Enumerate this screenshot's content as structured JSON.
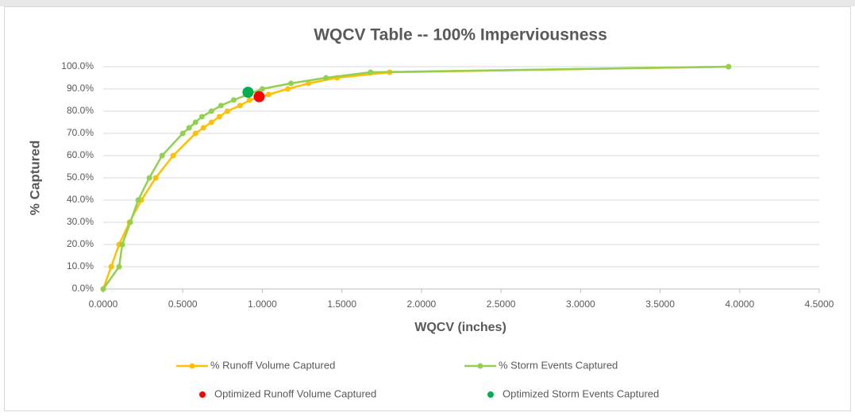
{
  "chart_data": {
    "type": "scatter",
    "title": "WQCV Table -- 100% Imperviousness",
    "x_label": "WQCV (inches)",
    "y_label": "% Captured",
    "xlim": [
      0,
      4.5
    ],
    "ylim": [
      0,
      100
    ],
    "xticks": [
      {
        "value": 0,
        "label": "0.0000"
      },
      {
        "value": 0.5,
        "label": "0.5000"
      },
      {
        "value": 1,
        "label": "1.0000"
      },
      {
        "value": 1.5,
        "label": "1.5000"
      },
      {
        "value": 2,
        "label": "2.0000"
      },
      {
        "value": 2.5,
        "label": "2.5000"
      },
      {
        "value": 3,
        "label": "3.0000"
      },
      {
        "value": 3.5,
        "label": "3.5000"
      },
      {
        "value": 4,
        "label": "4.0000"
      },
      {
        "value": 4.5,
        "label": "4.5000"
      }
    ],
    "yticks": [
      {
        "value": 0,
        "label": "0.0%"
      },
      {
        "value": 10,
        "label": "10.0%"
      },
      {
        "value": 20,
        "label": "20.0%"
      },
      {
        "value": 30,
        "label": "30.0%"
      },
      {
        "value": 40,
        "label": "40.0%"
      },
      {
        "value": 50,
        "label": "50.0%"
      },
      {
        "value": 60,
        "label": "60.0%"
      },
      {
        "value": 70,
        "label": "70.0%"
      },
      {
        "value": 80,
        "label": "80.0%"
      },
      {
        "value": 90,
        "label": "90.0%"
      },
      {
        "value": 100,
        "label": "100.0%"
      }
    ],
    "grid": true,
    "legend": "bottom",
    "series": [
      {
        "name": "% Runoff Volume Captured",
        "color": "#FFC000",
        "mode": "line",
        "x": [
          0,
          0.05,
          0.1,
          0.165,
          0.24,
          0.33,
          0.44,
          0.58,
          0.63,
          0.68,
          0.73,
          0.78,
          0.86,
          0.92,
          1.04,
          1.16,
          1.29,
          1.47,
          1.8,
          3.93
        ],
        "y": [
          0,
          10,
          20,
          30,
          40,
          50,
          60,
          70,
          72.5,
          75,
          77.5,
          80,
          82.5,
          85,
          87.5,
          90,
          92.5,
          95,
          97.5,
          100
        ]
      },
      {
        "name": "% Storm Events Captured",
        "color": "#92D050",
        "mode": "line",
        "x": [
          0,
          0.1,
          0.12,
          0.17,
          0.22,
          0.29,
          0.37,
          0.5,
          0.54,
          0.58,
          0.62,
          0.68,
          0.74,
          0.82,
          1.0,
          1.18,
          1.4,
          1.68,
          3.93
        ],
        "y": [
          0,
          10,
          20,
          30,
          40,
          50,
          60,
          70,
          72.5,
          75,
          77.5,
          80,
          82.5,
          85,
          90,
          92.5,
          95,
          97.5,
          100
        ]
      },
      {
        "name": "Optimized Runoff Volume Captured",
        "color": "#FF0000",
        "mode": "points",
        "x": [
          0.98
        ],
        "y": [
          86.5
        ]
      },
      {
        "name": "Optimized Storm Events Captured",
        "color": "#00B050",
        "mode": "points",
        "x": [
          0.91
        ],
        "y": [
          88.5
        ]
      }
    ]
  }
}
